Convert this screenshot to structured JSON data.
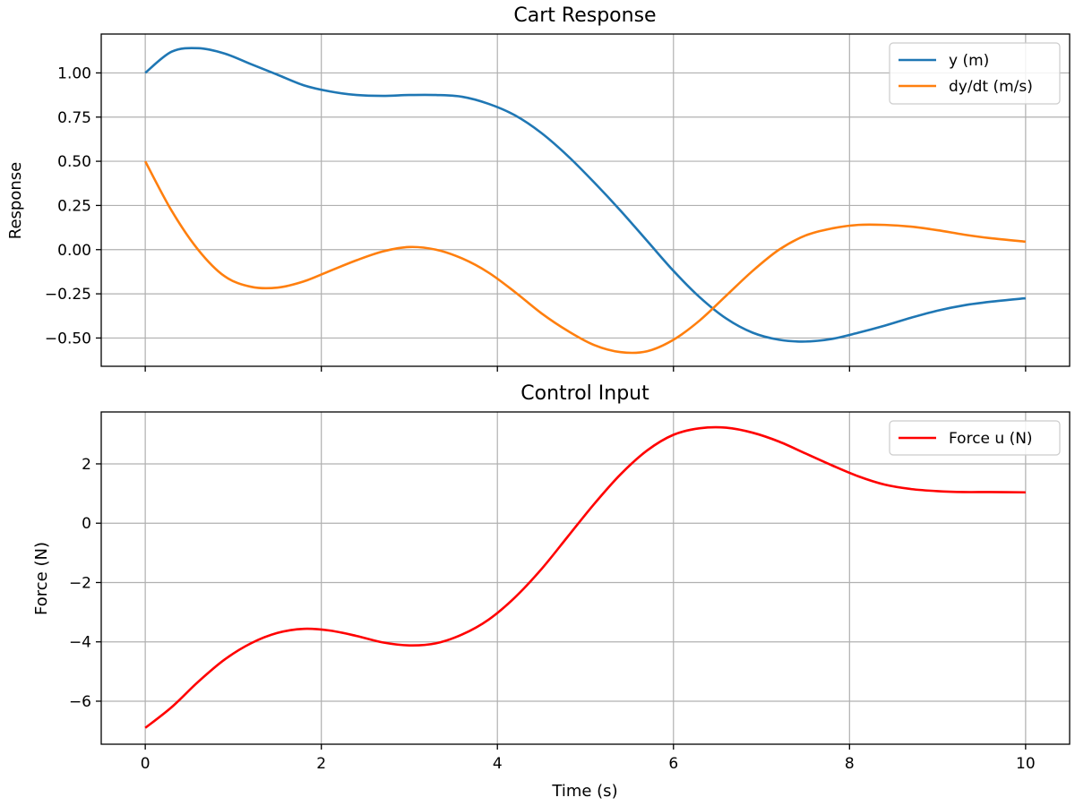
{
  "chart_data": [
    {
      "type": "line",
      "title": "Cart Response",
      "xlabel": "",
      "ylabel": "Response",
      "xlim": [
        -0.5,
        10.5
      ],
      "ylim": [
        -0.66,
        1.22
      ],
      "grid": true,
      "legend_position": "top-right",
      "x_ticks": [
        0,
        2,
        4,
        6,
        8,
        10
      ],
      "x_tick_labels_shown": false,
      "y_ticks": [
        -0.5,
        -0.25,
        0.0,
        0.25,
        0.5,
        0.75,
        1.0
      ],
      "y_tick_labels": [
        "−0.50",
        "−0.25",
        "0.00",
        "0.25",
        "0.50",
        "0.75",
        "1.00"
      ],
      "x": [
        0,
        0.3,
        0.6,
        0.9,
        1.2,
        1.5,
        1.8,
        2.1,
        2.4,
        2.7,
        3.0,
        3.3,
        3.6,
        3.9,
        4.2,
        4.5,
        4.8,
        5.1,
        5.4,
        5.7,
        6.0,
        6.3,
        6.6,
        6.9,
        7.2,
        7.5,
        7.8,
        8.1,
        8.4,
        8.7,
        9.0,
        9.3,
        9.6,
        10.0
      ],
      "series": [
        {
          "name": "y (m)",
          "color": "#1f77b4",
          "values": [
            1.0,
            1.12,
            1.14,
            1.11,
            1.05,
            0.99,
            0.93,
            0.895,
            0.875,
            0.87,
            0.875,
            0.875,
            0.865,
            0.825,
            0.76,
            0.66,
            0.53,
            0.38,
            0.22,
            0.05,
            -0.12,
            -0.27,
            -0.39,
            -0.47,
            -0.51,
            -0.52,
            -0.505,
            -0.47,
            -0.43,
            -0.385,
            -0.345,
            -0.315,
            -0.295,
            -0.275
          ]
        },
        {
          "name": "dy/dt (m/s)",
          "color": "#ff7f0e",
          "values": [
            0.5,
            0.22,
            0.0,
            -0.15,
            -0.21,
            -0.215,
            -0.18,
            -0.12,
            -0.06,
            -0.01,
            0.015,
            0.0,
            -0.05,
            -0.13,
            -0.24,
            -0.36,
            -0.46,
            -0.54,
            -0.58,
            -0.575,
            -0.51,
            -0.4,
            -0.26,
            -0.12,
            0.0,
            0.08,
            0.12,
            0.14,
            0.14,
            0.13,
            0.11,
            0.085,
            0.065,
            0.045
          ]
        }
      ]
    },
    {
      "type": "line",
      "title": "Control Input",
      "xlabel": "Time (s)",
      "ylabel": "Force (N)",
      "xlim": [
        -0.5,
        10.5
      ],
      "ylim": [
        -7.45,
        3.75
      ],
      "grid": true,
      "legend_position": "top-right",
      "x_ticks": [
        0,
        2,
        4,
        6,
        8,
        10
      ],
      "x_tick_labels": [
        "0",
        "2",
        "4",
        "6",
        "8",
        "10"
      ],
      "y_ticks": [
        -6,
        -4,
        -2,
        0,
        2
      ],
      "y_tick_labels": [
        "−6",
        "−4",
        "−2",
        "0",
        "2"
      ],
      "x": [
        0,
        0.3,
        0.6,
        0.9,
        1.2,
        1.5,
        1.8,
        2.1,
        2.4,
        2.7,
        3.0,
        3.3,
        3.6,
        3.9,
        4.2,
        4.5,
        4.8,
        5.1,
        5.4,
        5.7,
        6.0,
        6.3,
        6.6,
        6.9,
        7.2,
        7.5,
        7.8,
        8.1,
        8.4,
        8.7,
        9.0,
        9.3,
        9.6,
        10.0
      ],
      "series": [
        {
          "name": "Force u (N)",
          "color": "#ff0000",
          "values": [
            -6.9,
            -6.2,
            -5.35,
            -4.6,
            -4.05,
            -3.7,
            -3.56,
            -3.62,
            -3.8,
            -4.02,
            -4.12,
            -4.05,
            -3.75,
            -3.25,
            -2.5,
            -1.55,
            -0.45,
            0.65,
            1.65,
            2.45,
            2.98,
            3.2,
            3.22,
            3.05,
            2.75,
            2.35,
            1.95,
            1.58,
            1.3,
            1.15,
            1.08,
            1.05,
            1.05,
            1.04
          ]
        }
      ]
    }
  ]
}
